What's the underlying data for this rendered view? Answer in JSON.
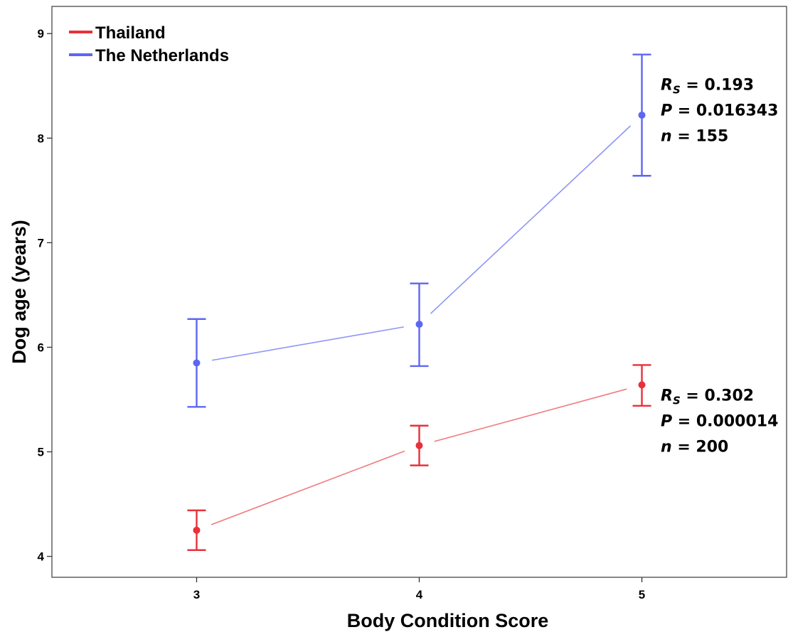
{
  "chart_data": {
    "type": "line",
    "title": "",
    "xlabel": "Body Condition Score",
    "ylabel": "Dog age (years)",
    "x": [
      3,
      4,
      5
    ],
    "x_ticks": [
      "3",
      "4",
      "5"
    ],
    "y_ticks": [
      "4",
      "5",
      "6",
      "7",
      "8",
      "9"
    ],
    "xlim": [
      2.35,
      5.65
    ],
    "ylim": [
      3.8,
      9.26
    ],
    "grid": false,
    "legend_position": "top-left",
    "error_bars": true,
    "series": [
      {
        "name": "Thailand",
        "color": "#e8313a",
        "line_color": "#f07a7f",
        "values": [
          4.25,
          5.06,
          5.64
        ],
        "lower": [
          4.06,
          4.87,
          5.44
        ],
        "upper": [
          4.44,
          5.25,
          5.83
        ],
        "stats": {
          "rs_symbol": "R",
          "rs_sub": "S",
          "rs_value": " = 0.302",
          "p_symbol": "P",
          "p_value": " = 0.000014",
          "n_symbol": "n",
          "n_value": " = 200"
        }
      },
      {
        "name": "The Netherlands",
        "color": "#5d66f2",
        "line_color": "#8f95f5",
        "values": [
          5.85,
          6.22,
          8.22
        ],
        "lower": [
          5.43,
          5.82,
          7.64
        ],
        "upper": [
          6.27,
          6.61,
          8.8
        ],
        "stats": {
          "rs_symbol": "R",
          "rs_sub": "S",
          "rs_value": " = 0.193",
          "p_symbol": "P",
          "p_value": " = 0.016343",
          "n_symbol": "n",
          "n_value": " = 155"
        }
      }
    ]
  }
}
